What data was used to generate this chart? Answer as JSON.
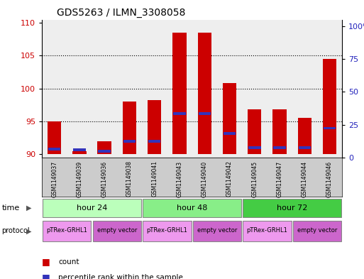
{
  "title": "GDS5263 / ILMN_3308058",
  "samples": [
    "GSM1149037",
    "GSM1149039",
    "GSM1149036",
    "GSM1149038",
    "GSM1149041",
    "GSM1149043",
    "GSM1149040",
    "GSM1149042",
    "GSM1149045",
    "GSM1149047",
    "GSM1149044",
    "GSM1149046"
  ],
  "bar_heights": [
    95.0,
    90.5,
    92.0,
    98.0,
    98.2,
    108.5,
    108.5,
    100.8,
    96.8,
    96.8,
    95.5,
    104.5
  ],
  "blue_values": [
    90.8,
    90.7,
    90.5,
    92.0,
    92.0,
    96.2,
    96.2,
    93.2,
    91.0,
    91.0,
    91.0,
    94.0
  ],
  "bar_bottom": 90,
  "ylim_left": [
    89.5,
    110.5
  ],
  "ylim_right": [
    0,
    105
  ],
  "yticks_left": [
    90,
    95,
    100,
    105,
    110
  ],
  "yticks_right": [
    0,
    25,
    50,
    75,
    100
  ],
  "bar_color": "#cc0000",
  "blue_color": "#3333bb",
  "bar_width": 0.55,
  "time_groups": [
    {
      "label": "hour 24",
      "start": 0,
      "end": 4
    },
    {
      "label": "hour 48",
      "start": 4,
      "end": 8
    },
    {
      "label": "hour 72",
      "start": 8,
      "end": 12
    }
  ],
  "protocol_groups": [
    {
      "label": "pTRex-GRHL1",
      "start": 0,
      "end": 2
    },
    {
      "label": "empty vector",
      "start": 2,
      "end": 4
    },
    {
      "label": "pTRex-GRHL1",
      "start": 4,
      "end": 6
    },
    {
      "label": "empty vector",
      "start": 6,
      "end": 8
    },
    {
      "label": "pTRex-GRHL1",
      "start": 8,
      "end": 10
    },
    {
      "label": "empty vector",
      "start": 10,
      "end": 12
    }
  ],
  "time_colors": [
    "#bbffbb",
    "#88ee88",
    "#44cc44"
  ],
  "proto_colors": [
    "#ee99ee",
    "#cc66cc"
  ],
  "bg_color": "#ffffff",
  "axis_bg": "#eeeeee",
  "left_color": "#cc0000",
  "right_color": "#2222bb",
  "sample_box_color": "#cccccc"
}
